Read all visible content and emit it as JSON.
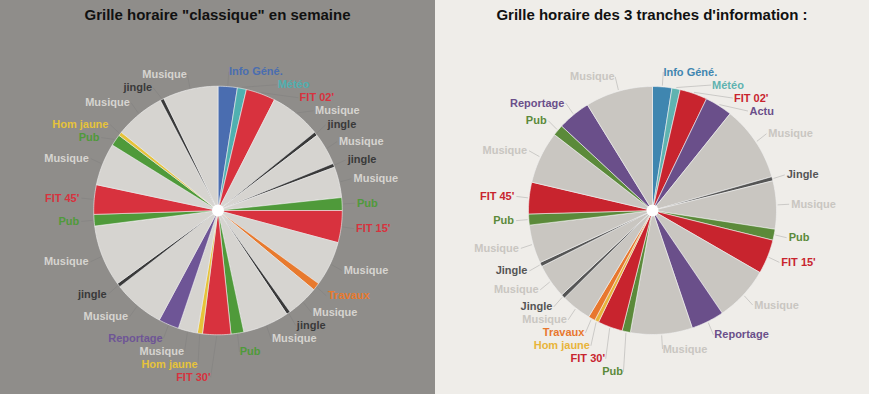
{
  "chart_data": [
    {
      "type": "pie",
      "title": "Grille horaire \"classique\" en semaine",
      "categories": [
        "Info Géné.",
        "Météo",
        "FIT 02'",
        "Musique",
        "jingle",
        "Musique",
        "jingle",
        "Musique",
        "Pub",
        "FIT 15'",
        "Musique",
        "Travaux",
        "Musique",
        "jingle",
        "Musique",
        "Pub",
        "FIT 30'",
        "Hom jaune",
        "Musique",
        "Reportage",
        "Musique",
        "jingle",
        "Musique",
        "Pub",
        "FIT 45'",
        "Musique",
        "Pub",
        "Hom jaune",
        "Musique",
        "jingle",
        "Musique"
      ],
      "values": [
        1.5,
        0.7,
        2.3,
        4.0,
        0.3,
        2.5,
        0.3,
        2.4,
        1.0,
        2.5,
        3.5,
        0.6,
        2.5,
        0.3,
        3.6,
        1.0,
        2.2,
        0.4,
        1.5,
        1.6,
        4.0,
        0.3,
        4.8,
        0.9,
        2.3,
        3.3,
        0.9,
        0.3,
        3.9,
        0.3,
        4.3
      ],
      "colors": [
        "#4a6db0",
        "#4fb0b0",
        "#d8323e",
        "#d6d4d0",
        "#3a3a3a",
        "#d6d4d0",
        "#3a3a3a",
        "#d6d4d0",
        "#4f9a3a",
        "#d8323e",
        "#d6d4d0",
        "#e87a2e",
        "#d6d4d0",
        "#3a3a3a",
        "#d6d4d0",
        "#4f9a3a",
        "#d8323e",
        "#e6c33a",
        "#d6d4d0",
        "#6e5596",
        "#d6d4d0",
        "#3a3a3a",
        "#d6d4d0",
        "#4f9a3a",
        "#d8323e",
        "#d6d4d0",
        "#4f9a3a",
        "#e6c33a",
        "#d6d4d0",
        "#3a3a3a",
        "#d6d4d0"
      ]
    },
    {
      "type": "pie",
      "title": "Grille horaire des 3 tranches d'information :",
      "categories": [
        "Info Géné.",
        "Météo",
        "FIT 02'",
        "Actu",
        "Musique",
        "Jingle",
        "Musique",
        "Pub",
        "FIT 15'",
        "Musique",
        "Reportage",
        "Musique",
        "Pub",
        "FIT 30'",
        "Hom jaune",
        "Travaux",
        "Musique",
        "Jingle",
        "Musique",
        "Jingle",
        "Musique",
        "Pub",
        "FIT 45'",
        "Musique",
        "Pub",
        "Reportage",
        "Musique"
      ],
      "values": [
        1.4,
        0.6,
        2.0,
        2.0,
        5.5,
        0.3,
        3.5,
        0.8,
        2.5,
        4.0,
        2.4,
        4.5,
        0.6,
        1.8,
        0.3,
        0.5,
        2.2,
        0.3,
        2.5,
        0.3,
        2.8,
        0.8,
        2.3,
        3.8,
        0.8,
        2.4,
        4.9
      ],
      "colors": [
        "#3f86b0",
        "#5fb3b0",
        "#c8242e",
        "#6a4f8a",
        "#c9c6c1",
        "#555555",
        "#c9c6c1",
        "#5b8a3a",
        "#c8242e",
        "#c9c6c1",
        "#6a4f8a",
        "#c9c6c1",
        "#5b8a3a",
        "#c8242e",
        "#e8b43a",
        "#e8772e",
        "#c9c6c1",
        "#555555",
        "#c9c6c1",
        "#555555",
        "#c9c6c1",
        "#5b8a3a",
        "#c8242e",
        "#c9c6c1",
        "#5b8a3a",
        "#6a4f8a",
        "#c9c6c1"
      ]
    }
  ]
}
